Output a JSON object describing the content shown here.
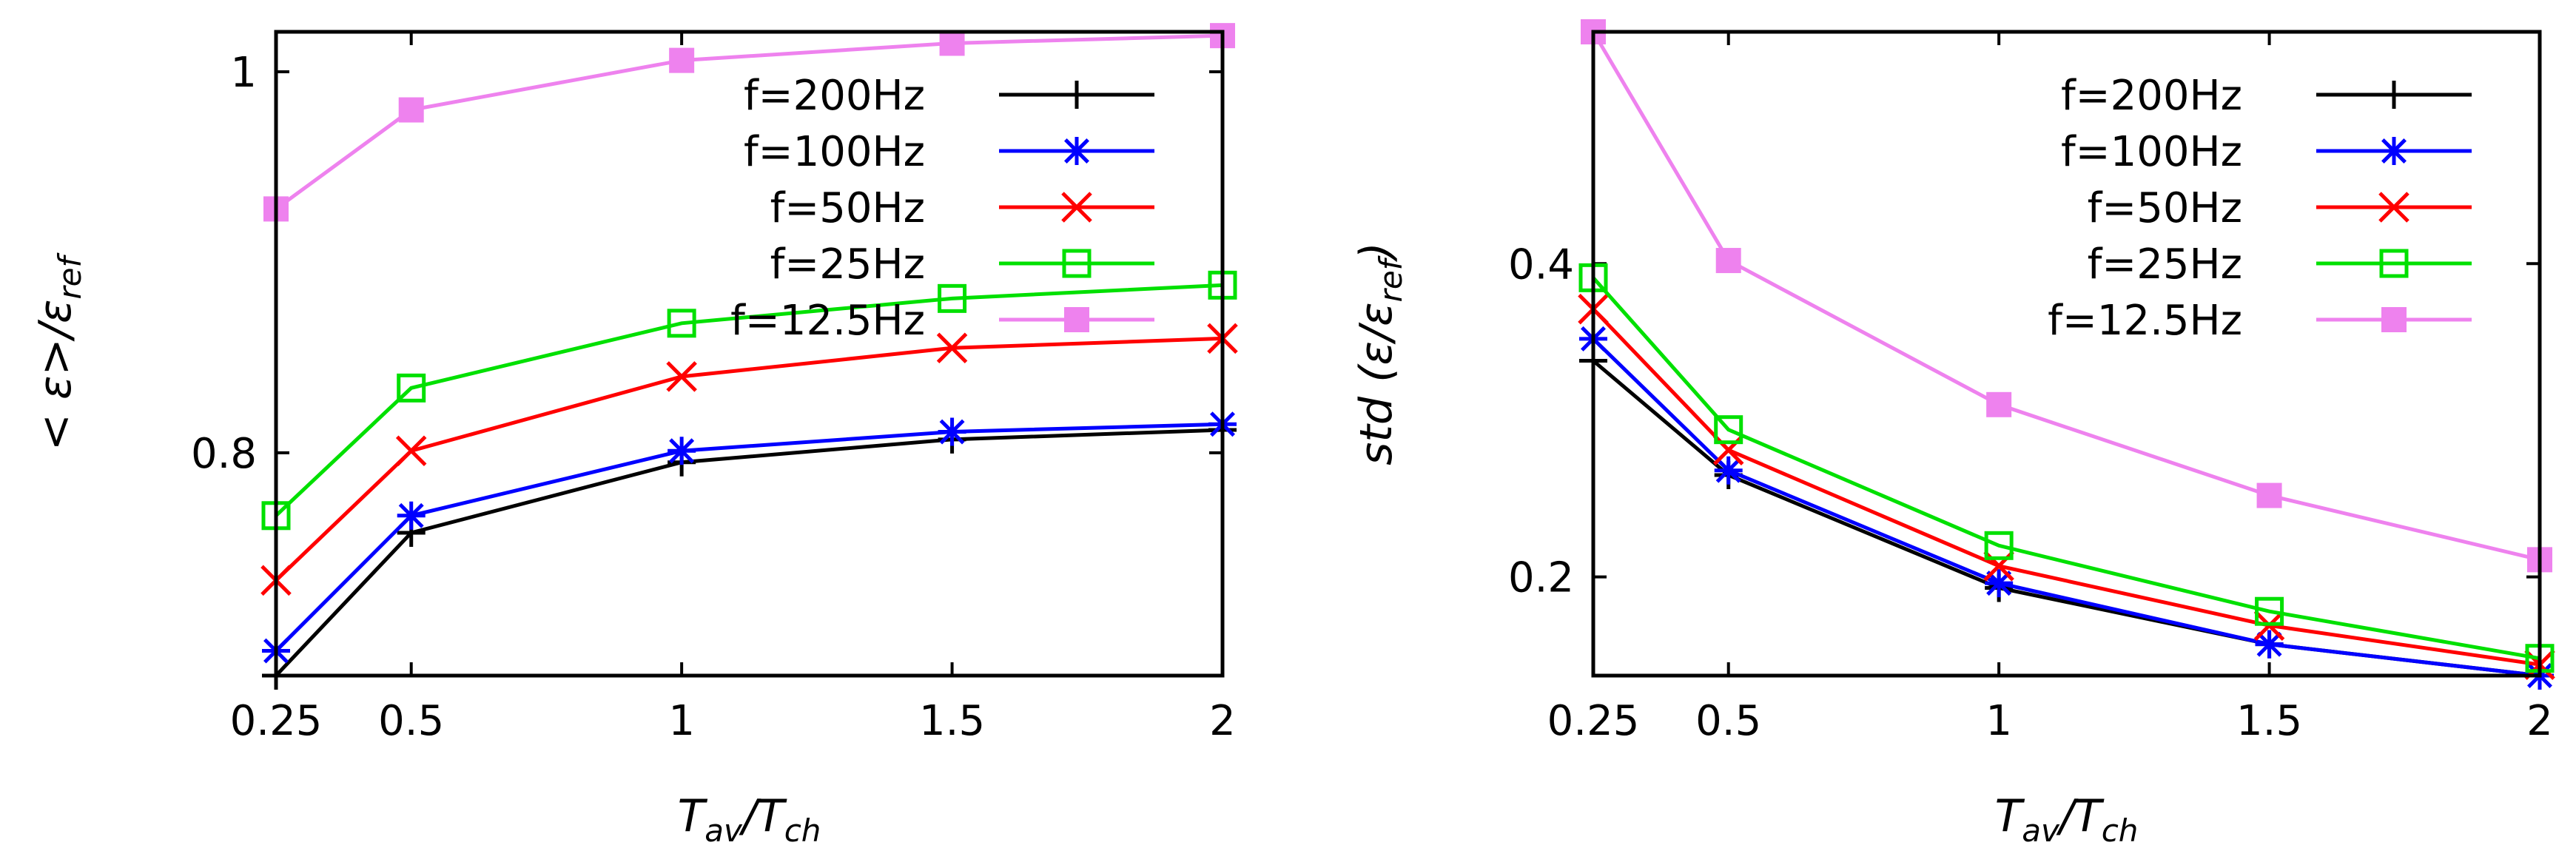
{
  "chart_data": [
    {
      "type": "line",
      "id": "left",
      "x": [
        0.25,
        0.5,
        1,
        1.5,
        2
      ],
      "x_tick_labels": [
        "0.25",
        "0.5",
        "1",
        "1.5",
        "2"
      ],
      "y_ticks": [
        0.8,
        1
      ],
      "y_tick_labels": [
        "0.8",
        "1"
      ],
      "xlim": [
        0.25,
        2
      ],
      "ylim": [
        0.683,
        1.021
      ],
      "xlabel": {
        "base": "T",
        "sub1": "av",
        "slash": "/T",
        "sub2": "ch"
      },
      "ylabel": {
        "prefix": "< ε>/ε",
        "sub": "ref"
      },
      "grid": false,
      "legend_position": "top-right",
      "series": [
        {
          "name": "f=200Hz",
          "color": "#000000",
          "marker": "plus",
          "values": [
            0.683,
            0.758,
            0.795,
            0.807,
            0.812
          ]
        },
        {
          "name": "f=100Hz",
          "color": "#0000ff",
          "marker": "star",
          "values": [
            0.696,
            0.767,
            0.801,
            0.811,
            0.815
          ]
        },
        {
          "name": "f=50Hz",
          "color": "#ff0000",
          "marker": "cross",
          "values": [
            0.733,
            0.801,
            0.84,
            0.855,
            0.86
          ]
        },
        {
          "name": "f=25Hz",
          "color": "#00e000",
          "marker": "open-square",
          "values": [
            0.767,
            0.834,
            0.868,
            0.881,
            0.888
          ]
        },
        {
          "name": "f=12.5Hz",
          "color": "#ee82ee",
          "marker": "filled-square",
          "values": [
            0.928,
            0.98,
            1.006,
            1.015,
            1.019
          ]
        }
      ]
    },
    {
      "type": "line",
      "id": "right",
      "x": [
        0.25,
        0.5,
        1,
        1.5,
        2
      ],
      "x_tick_labels": [
        "0.25",
        "0.5",
        "1",
        "1.5",
        "2"
      ],
      "y_ticks": [
        0.2,
        0.4
      ],
      "y_tick_labels": [
        "0.2",
        "0.4"
      ],
      "xlim": [
        0.25,
        2
      ],
      "ylim": [
        0.137,
        0.548
      ],
      "xlabel": {
        "base": "T",
        "sub1": "av",
        "slash": "/T",
        "sub2": "ch"
      },
      "ylabel": {
        "prefix": "std (ε/ε",
        "sub": "ref",
        "suffix": ")"
      },
      "grid": false,
      "legend_position": "top-right",
      "series": [
        {
          "name": "f=200Hz",
          "color": "#000000",
          "marker": "plus",
          "values": [
            0.338,
            0.265,
            0.193,
            0.157,
            0.137
          ]
        },
        {
          "name": "f=100Hz",
          "color": "#0000ff",
          "marker": "star",
          "values": [
            0.352,
            0.268,
            0.196,
            0.157,
            0.137
          ]
        },
        {
          "name": "f=50Hz",
          "color": "#ff0000",
          "marker": "cross",
          "values": [
            0.371,
            0.281,
            0.207,
            0.169,
            0.144
          ]
        },
        {
          "name": "f=25Hz",
          "color": "#00e000",
          "marker": "open-square",
          "values": [
            0.391,
            0.294,
            0.22,
            0.178,
            0.148
          ]
        },
        {
          "name": "f=12.5Hz",
          "color": "#ee82ee",
          "marker": "filled-square",
          "values": [
            0.548,
            0.402,
            0.31,
            0.252,
            0.211
          ]
        }
      ]
    }
  ]
}
